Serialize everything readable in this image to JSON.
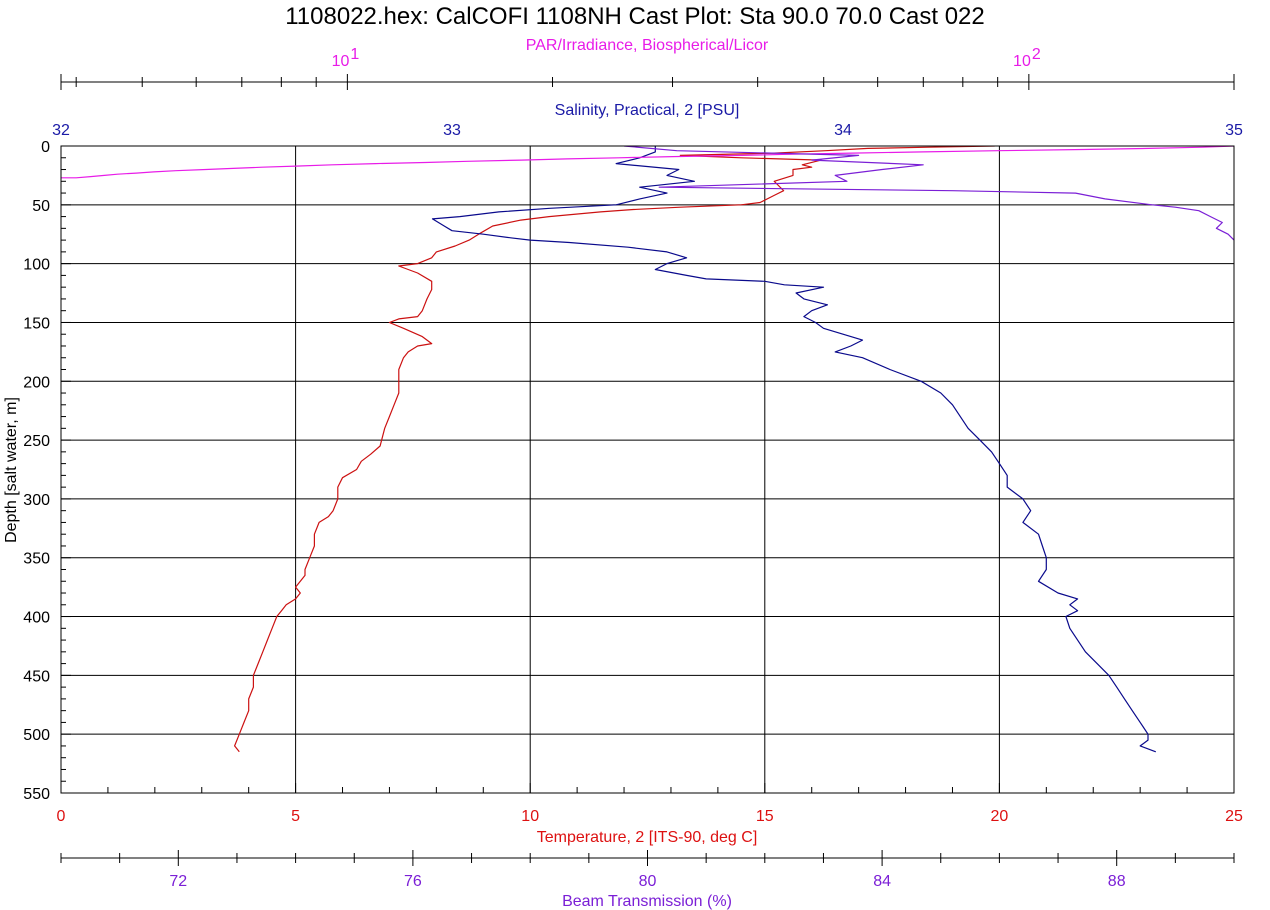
{
  "chart_data": {
    "type": "line",
    "title": "1108022.hex:  CalCOFI 1108NH Cast Plot: Sta 90.0 70.0 Cast 022",
    "y_axis": {
      "label": "Depth [salt water, m]",
      "range": [
        0,
        550
      ],
      "inverted": true,
      "ticks": [
        0,
        50,
        100,
        150,
        200,
        250,
        300,
        350,
        400,
        450,
        500,
        550
      ],
      "color": "#000000"
    },
    "grid": true,
    "axes": {
      "par": {
        "label": "PAR/Irradiance, Biospherical/Licor",
        "position": "top",
        "scale": "log",
        "range": [
          3.8,
          200
        ],
        "major_ticks": [
          10,
          100
        ],
        "major_tick_labels": [
          {
            "base": "10",
            "exp": "1"
          },
          {
            "base": "10",
            "exp": "2"
          }
        ],
        "color": "#e81ce8"
      },
      "salinity": {
        "label": "Salinity, Practical, 2 [PSU]",
        "position": "top",
        "range": [
          32,
          35
        ],
        "ticks": [
          32,
          33,
          34,
          35
        ],
        "color": "#1a1aa6"
      },
      "temperature": {
        "label": "Temperature, 2 [ITS-90, deg C]",
        "position": "bottom",
        "range": [
          0,
          25
        ],
        "ticks": [
          0,
          5,
          10,
          15,
          20,
          25
        ],
        "color": "#dd1111"
      },
      "beam": {
        "label": "Beam Transmission (%)",
        "position": "bottom",
        "range": [
          70,
          90
        ],
        "ticks": [
          72,
          76,
          80,
          84,
          88
        ],
        "color": "#7b1fd6"
      }
    },
    "series": [
      {
        "axis": "temperature",
        "color": "#cc1111",
        "points": [
          [
            19.9,
            0
          ],
          [
            18.5,
            1
          ],
          [
            17.2,
            2
          ],
          [
            16.3,
            4
          ],
          [
            15.2,
            6
          ],
          [
            13.2,
            8
          ],
          [
            14.5,
            10
          ],
          [
            16.2,
            12
          ],
          [
            15.8,
            16
          ],
          [
            16.0,
            18
          ],
          [
            15.6,
            20
          ],
          [
            15.6,
            25
          ],
          [
            15.2,
            30
          ],
          [
            15.3,
            34
          ],
          [
            15.4,
            38
          ],
          [
            15.2,
            42
          ],
          [
            14.9,
            48
          ],
          [
            14.5,
            50
          ],
          [
            13.2,
            52
          ],
          [
            12.2,
            54
          ],
          [
            11.5,
            56
          ],
          [
            10.4,
            60
          ],
          [
            9.8,
            63
          ],
          [
            9.2,
            68
          ],
          [
            8.9,
            75
          ],
          [
            8.7,
            80
          ],
          [
            8.4,
            85
          ],
          [
            8.0,
            90
          ],
          [
            7.9,
            95
          ],
          [
            7.6,
            100
          ],
          [
            7.2,
            102
          ],
          [
            7.6,
            108
          ],
          [
            7.9,
            115
          ],
          [
            7.9,
            122
          ],
          [
            7.8,
            130
          ],
          [
            7.7,
            140
          ],
          [
            7.6,
            145
          ],
          [
            7.2,
            147
          ],
          [
            7.0,
            150
          ],
          [
            7.3,
            155
          ],
          [
            7.7,
            162
          ],
          [
            7.9,
            168
          ],
          [
            7.6,
            170
          ],
          [
            7.4,
            175
          ],
          [
            7.3,
            180
          ],
          [
            7.2,
            190
          ],
          [
            7.2,
            200
          ],
          [
            7.2,
            210
          ],
          [
            7.1,
            220
          ],
          [
            7.0,
            230
          ],
          [
            6.9,
            240
          ],
          [
            6.8,
            255
          ],
          [
            6.6,
            262
          ],
          [
            6.4,
            268
          ],
          [
            6.3,
            275
          ],
          [
            6.0,
            282
          ],
          [
            5.9,
            290
          ],
          [
            5.9,
            300
          ],
          [
            5.8,
            310
          ],
          [
            5.7,
            315
          ],
          [
            5.5,
            320
          ],
          [
            5.4,
            330
          ],
          [
            5.4,
            340
          ],
          [
            5.3,
            350
          ],
          [
            5.2,
            360
          ],
          [
            5.2,
            365
          ],
          [
            5.1,
            370
          ],
          [
            5.0,
            375
          ],
          [
            5.1,
            380
          ],
          [
            5.0,
            385
          ],
          [
            4.8,
            390
          ],
          [
            4.7,
            395
          ],
          [
            4.6,
            400
          ],
          [
            4.5,
            410
          ],
          [
            4.4,
            420
          ],
          [
            4.3,
            430
          ],
          [
            4.2,
            440
          ],
          [
            4.1,
            450
          ],
          [
            4.1,
            460
          ],
          [
            4.0,
            470
          ],
          [
            4.0,
            480
          ],
          [
            3.9,
            490
          ],
          [
            3.8,
            500
          ],
          [
            3.7,
            510
          ],
          [
            3.8,
            515
          ]
        ]
      },
      {
        "axis": "salinity",
        "color": "#0a0a8c",
        "points": [
          [
            33.52,
            0
          ],
          [
            33.52,
            5
          ],
          [
            33.48,
            10
          ],
          [
            33.42,
            15
          ],
          [
            33.58,
            20
          ],
          [
            33.55,
            25
          ],
          [
            33.62,
            30
          ],
          [
            33.48,
            35
          ],
          [
            33.55,
            40
          ],
          [
            33.48,
            45
          ],
          [
            33.42,
            50
          ],
          [
            33.25,
            53
          ],
          [
            33.12,
            56
          ],
          [
            33.02,
            60
          ],
          [
            32.95,
            62
          ],
          [
            32.98,
            68
          ],
          [
            33.0,
            72
          ],
          [
            33.08,
            75
          ],
          [
            33.15,
            78
          ],
          [
            33.2,
            80
          ],
          [
            33.3,
            82
          ],
          [
            33.45,
            86
          ],
          [
            33.55,
            90
          ],
          [
            33.6,
            95
          ],
          [
            33.55,
            100
          ],
          [
            33.52,
            105
          ],
          [
            33.6,
            110
          ],
          [
            33.65,
            113
          ],
          [
            33.8,
            115
          ],
          [
            33.85,
            118
          ],
          [
            33.95,
            120
          ],
          [
            33.88,
            125
          ],
          [
            33.9,
            130
          ],
          [
            33.96,
            135
          ],
          [
            33.92,
            140
          ],
          [
            33.9,
            145
          ],
          [
            33.93,
            150
          ],
          [
            33.95,
            155
          ],
          [
            34.0,
            160
          ],
          [
            34.05,
            165
          ],
          [
            34.02,
            170
          ],
          [
            33.98,
            175
          ],
          [
            34.05,
            180
          ],
          [
            34.12,
            190
          ],
          [
            34.2,
            200
          ],
          [
            34.25,
            210
          ],
          [
            34.28,
            220
          ],
          [
            34.3,
            230
          ],
          [
            34.32,
            240
          ],
          [
            34.35,
            250
          ],
          [
            34.38,
            260
          ],
          [
            34.4,
            270
          ],
          [
            34.42,
            280
          ],
          [
            34.42,
            290
          ],
          [
            34.46,
            300
          ],
          [
            34.48,
            310
          ],
          [
            34.46,
            320
          ],
          [
            34.5,
            330
          ],
          [
            34.51,
            340
          ],
          [
            34.52,
            350
          ],
          [
            34.52,
            360
          ],
          [
            34.5,
            370
          ],
          [
            34.55,
            380
          ],
          [
            34.6,
            385
          ],
          [
            34.58,
            390
          ],
          [
            34.6,
            395
          ],
          [
            34.57,
            400
          ],
          [
            34.58,
            410
          ],
          [
            34.6,
            420
          ],
          [
            34.62,
            430
          ],
          [
            34.65,
            440
          ],
          [
            34.68,
            450
          ],
          [
            34.7,
            460
          ],
          [
            34.72,
            470
          ],
          [
            34.74,
            480
          ],
          [
            34.76,
            490
          ],
          [
            34.78,
            500
          ],
          [
            34.78,
            505
          ],
          [
            34.76,
            510
          ],
          [
            34.8,
            515
          ]
        ]
      },
      {
        "axis": "par",
        "color": "#e81ce8",
        "points": [
          [
            200,
            0
          ],
          [
            180,
            1
          ],
          [
            150,
            2
          ],
          [
            120,
            3
          ],
          [
            90,
            4
          ],
          [
            70,
            5
          ],
          [
            55,
            6
          ],
          [
            45,
            7
          ],
          [
            38,
            8
          ],
          [
            30,
            9
          ],
          [
            25,
            10
          ],
          [
            21,
            11
          ],
          [
            18,
            12
          ],
          [
            15,
            13
          ],
          [
            13,
            14
          ],
          [
            11,
            15
          ],
          [
            9.5,
            16
          ],
          [
            8.5,
            17
          ],
          [
            7.5,
            18
          ],
          [
            6.8,
            19
          ],
          [
            6.2,
            20
          ],
          [
            5.6,
            21
          ],
          [
            5.2,
            22
          ],
          [
            4.9,
            23
          ],
          [
            4.6,
            24
          ],
          [
            4.4,
            25
          ],
          [
            4.2,
            26
          ],
          [
            4.0,
            27
          ],
          [
            3.8,
            27
          ]
        ]
      },
      {
        "axis": "beam",
        "color": "#7b1fd6",
        "points": [
          [
            79.6,
            0
          ],
          [
            80.5,
            4
          ],
          [
            83.6,
            8
          ],
          [
            82.8,
            12
          ],
          [
            84.7,
            16
          ],
          [
            84.0,
            20
          ],
          [
            83.2,
            25
          ],
          [
            83.4,
            30
          ],
          [
            80.2,
            35
          ],
          [
            85.2,
            38
          ],
          [
            87.3,
            40
          ],
          [
            87.8,
            45
          ],
          [
            88.6,
            50
          ],
          [
            89.0,
            52
          ],
          [
            89.4,
            55
          ],
          [
            89.6,
            60
          ],
          [
            89.8,
            65
          ],
          [
            89.7,
            70
          ],
          [
            89.9,
            75
          ],
          [
            90.0,
            80
          ],
          [
            90.1,
            85
          ],
          [
            90.2,
            90
          ],
          [
            90.4,
            100
          ],
          [
            90.5,
            110
          ],
          [
            90.6,
            120
          ],
          [
            90.6,
            130
          ],
          [
            90.7,
            140
          ],
          [
            90.7,
            150
          ],
          [
            90.6,
            160
          ],
          [
            90.6,
            170
          ],
          [
            90.7,
            180
          ],
          [
            90.7,
            190
          ],
          [
            90.7,
            200
          ],
          [
            90.6,
            210
          ],
          [
            90.7,
            220
          ],
          [
            90.8,
            230
          ],
          [
            90.8,
            240
          ],
          [
            90.8,
            250
          ],
          [
            90.8,
            260
          ],
          [
            90.8,
            270
          ],
          [
            90.8,
            280
          ],
          [
            90.8,
            290
          ],
          [
            90.8,
            300
          ],
          [
            90.8,
            320
          ],
          [
            90.8,
            340
          ],
          [
            90.8,
            360
          ],
          [
            90.8,
            380
          ],
          [
            90.8,
            400
          ],
          [
            90.8,
            420
          ],
          [
            90.9,
            440
          ],
          [
            90.9,
            460
          ],
          [
            90.9,
            480
          ],
          [
            90.9,
            500
          ],
          [
            90.9,
            515
          ]
        ]
      }
    ]
  }
}
